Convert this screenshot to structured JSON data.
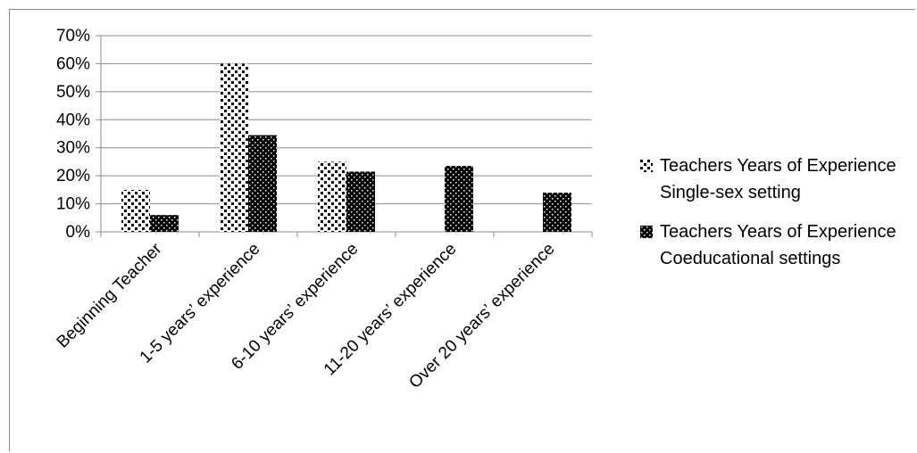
{
  "chart_data": {
    "type": "bar",
    "categories": [
      "Beginning Teacher",
      "1-5 years’ experience",
      "6-10 years’ experience",
      "11-20 years’ experience",
      "Over 20 years’ experience"
    ],
    "series": [
      {
        "name": "Teachers Years of Experience  Single-sex setting",
        "values": [
          15,
          60,
          25,
          0,
          0
        ],
        "pattern": "light-dots"
      },
      {
        "name": "Teachers Years of Experience  Coeducational settings",
        "values": [
          6,
          34.5,
          21.5,
          23.5,
          14
        ],
        "pattern": "dark-dots"
      }
    ],
    "yticks": [
      "0%",
      "10%",
      "20%",
      "30%",
      "40%",
      "50%",
      "60%",
      "70%"
    ],
    "ylim": [
      0,
      70
    ],
    "grid": true,
    "legend_position": "right"
  },
  "colors": {
    "gridline": "#8c8c8c",
    "axis": "#8c8c8c",
    "dark_bar": "#000000",
    "light_bar": "#ffffff"
  }
}
